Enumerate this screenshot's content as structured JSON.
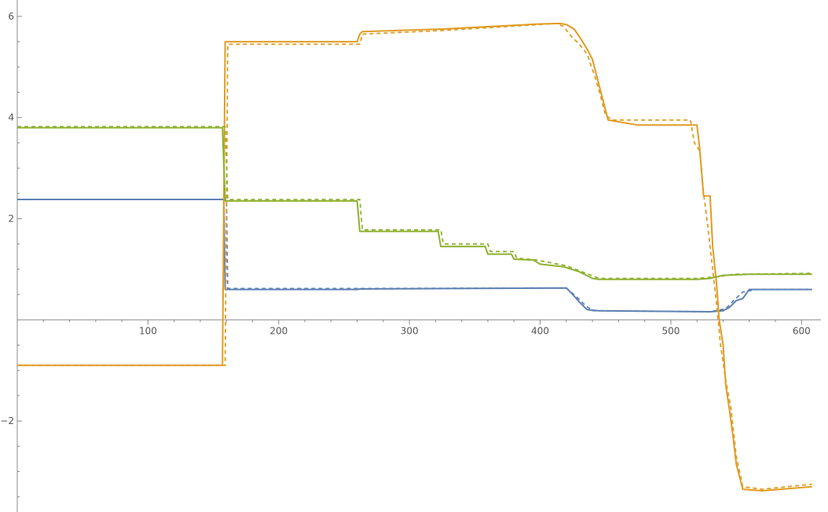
{
  "chart_data": {
    "type": "line",
    "title": "",
    "xlabel": "",
    "ylabel": "",
    "xlim": [
      0,
      610
    ],
    "ylim": [
      -3.8,
      6.2
    ],
    "x_ticks": [
      100,
      200,
      300,
      400,
      500,
      600
    ],
    "y_ticks": [
      -2,
      2,
      4,
      6
    ],
    "grid": false,
    "legend": "none",
    "series": [
      {
        "color": "#5E81B5",
        "style": "solid",
        "points": [
          [
            0,
            2.38
          ],
          [
            158,
            2.38
          ],
          [
            159,
            0.6
          ],
          [
            260,
            0.6
          ],
          [
            262,
            0.61
          ],
          [
            420,
            0.63
          ],
          [
            425,
            0.5
          ],
          [
            430,
            0.35
          ],
          [
            436,
            0.2
          ],
          [
            445,
            0.18
          ],
          [
            530,
            0.16
          ],
          [
            540,
            0.18
          ],
          [
            545,
            0.25
          ],
          [
            550,
            0.38
          ],
          [
            555,
            0.42
          ],
          [
            560,
            0.6
          ],
          [
            608,
            0.6
          ]
        ]
      },
      {
        "color": "#5E81B5",
        "style": "dashed",
        "points": [
          [
            0,
            2.38
          ],
          [
            160,
            2.38
          ],
          [
            161,
            0.62
          ],
          [
            262,
            0.62
          ],
          [
            420,
            0.63
          ],
          [
            428,
            0.45
          ],
          [
            434,
            0.3
          ],
          [
            440,
            0.18
          ],
          [
            445,
            0.18
          ],
          [
            530,
            0.16
          ],
          [
            542,
            0.22
          ],
          [
            548,
            0.38
          ],
          [
            555,
            0.55
          ],
          [
            565,
            0.6
          ],
          [
            608,
            0.6
          ]
        ]
      },
      {
        "color": "#E19C24",
        "style": "solid",
        "points": [
          [
            0,
            -0.9
          ],
          [
            157,
            -0.9
          ],
          [
            159,
            5.5
          ],
          [
            260,
            5.5
          ],
          [
            262,
            5.65
          ],
          [
            264,
            5.7
          ],
          [
            325,
            5.75
          ],
          [
            400,
            5.85
          ],
          [
            415,
            5.86
          ],
          [
            420,
            5.84
          ],
          [
            426,
            5.75
          ],
          [
            430,
            5.6
          ],
          [
            436,
            5.35
          ],
          [
            440,
            5.15
          ],
          [
            444,
            4.75
          ],
          [
            448,
            4.35
          ],
          [
            452,
            3.95
          ],
          [
            475,
            3.85
          ],
          [
            520,
            3.85
          ],
          [
            522,
            3.4
          ],
          [
            525,
            2.45
          ],
          [
            530,
            2.45
          ],
          [
            532,
            1.45
          ],
          [
            535,
            0.7
          ],
          [
            537,
            0.0
          ],
          [
            540,
            -0.5
          ],
          [
            542,
            -1.3
          ],
          [
            545,
            -1.8
          ],
          [
            548,
            -2.4
          ],
          [
            550,
            -2.85
          ],
          [
            555,
            -3.35
          ],
          [
            570,
            -3.38
          ],
          [
            608,
            -3.3
          ]
        ]
      },
      {
        "color": "#E19C24",
        "style": "dashed",
        "points": [
          [
            0,
            -0.9
          ],
          [
            159,
            -0.9
          ],
          [
            161,
            5.45
          ],
          [
            262,
            5.45
          ],
          [
            264,
            5.65
          ],
          [
            325,
            5.72
          ],
          [
            400,
            5.84
          ],
          [
            412,
            5.86
          ],
          [
            418,
            5.8
          ],
          [
            424,
            5.6
          ],
          [
            430,
            5.45
          ],
          [
            436,
            5.25
          ],
          [
            442,
            4.8
          ],
          [
            446,
            4.45
          ],
          [
            450,
            4.05
          ],
          [
            455,
            3.95
          ],
          [
            515,
            3.95
          ],
          [
            518,
            3.5
          ],
          [
            522,
            3.35
          ],
          [
            525,
            2.5
          ],
          [
            528,
            1.9
          ],
          [
            532,
            1.0
          ],
          [
            535,
            0.3
          ],
          [
            538,
            -0.5
          ],
          [
            542,
            -1.2
          ],
          [
            546,
            -1.75
          ],
          [
            550,
            -2.7
          ],
          [
            555,
            -3.3
          ],
          [
            570,
            -3.35
          ],
          [
            608,
            -3.25
          ]
        ]
      },
      {
        "color": "#8FB131",
        "style": "solid",
        "points": [
          [
            0,
            3.8
          ],
          [
            157,
            3.8
          ],
          [
            159,
            2.35
          ],
          [
            260,
            2.35
          ],
          [
            262,
            1.75
          ],
          [
            322,
            1.75
          ],
          [
            324,
            1.45
          ],
          [
            358,
            1.45
          ],
          [
            360,
            1.3
          ],
          [
            378,
            1.3
          ],
          [
            380,
            1.2
          ],
          [
            395,
            1.18
          ],
          [
            400,
            1.1
          ],
          [
            418,
            1.05
          ],
          [
            430,
            0.95
          ],
          [
            440,
            0.82
          ],
          [
            445,
            0.8
          ],
          [
            520,
            0.8
          ],
          [
            530,
            0.82
          ],
          [
            540,
            0.88
          ],
          [
            560,
            0.9
          ],
          [
            608,
            0.9
          ]
        ]
      },
      {
        "color": "#8FB131",
        "style": "dashed",
        "points": [
          [
            0,
            3.82
          ],
          [
            159,
            3.82
          ],
          [
            161,
            2.38
          ],
          [
            262,
            2.38
          ],
          [
            264,
            1.78
          ],
          [
            324,
            1.78
          ],
          [
            326,
            1.5
          ],
          [
            360,
            1.5
          ],
          [
            362,
            1.35
          ],
          [
            380,
            1.35
          ],
          [
            382,
            1.22
          ],
          [
            398,
            1.18
          ],
          [
            420,
            1.07
          ],
          [
            435,
            0.92
          ],
          [
            445,
            0.82
          ],
          [
            520,
            0.82
          ],
          [
            535,
            0.85
          ],
          [
            548,
            0.9
          ],
          [
            608,
            0.92
          ]
        ]
      }
    ]
  }
}
